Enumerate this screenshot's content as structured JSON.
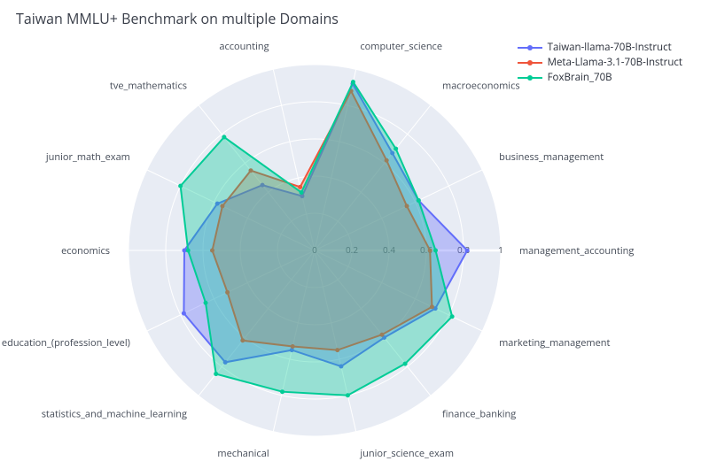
{
  "title": "Taiwan MMLU+ Benchmark on multiple Domains",
  "chart": {
    "type": "radar",
    "background_color": "#ffffff",
    "plot_bgcolor": "#e8ecf4",
    "gridline_color": "#ffffff",
    "axis_line_color": "#ffffff",
    "label_color": "#444b57",
    "label_fontsize": 11,
    "tick_fontsize": 10,
    "radial_axis": {
      "range": [
        0,
        1
      ],
      "ticks": [
        0,
        0.2,
        0.4,
        0.6,
        0.8,
        1
      ],
      "tick_labels": [
        "0",
        "0.2",
        "0.4",
        "0.6",
        "0.8",
        "1"
      ],
      "angle_deg": 0
    },
    "categories": [
      "management_accounting",
      "business_management",
      "macroeconomics",
      "computer_science",
      "accounting",
      "tve_mathematics",
      "junior_math_exam",
      "economics",
      "education_(profession_level)",
      "statistics_and_machine_learning",
      "mechanical",
      "junior_science_exam",
      "finance_banking",
      "marketing_management"
    ],
    "series": [
      {
        "name": "Taiwan-llama-70B-Instruct",
        "color": "#636efa",
        "fill_opacity": 0.35,
        "line_width": 2,
        "marker_size": 5,
        "values": [
          0.82,
          0.62,
          0.67,
          0.92,
          0.3,
          0.45,
          0.58,
          0.7,
          0.78,
          0.77,
          0.55,
          0.64,
          0.6,
          0.72
        ]
      },
      {
        "name": "Meta-Llama-3.1-70B-Instruct",
        "color": "#ef553b",
        "fill_opacity": 0.3,
        "line_width": 2,
        "marker_size": 5,
        "values": [
          0.62,
          0.55,
          0.62,
          0.88,
          0.35,
          0.55,
          0.55,
          0.55,
          0.52,
          0.62,
          0.53,
          0.55,
          0.58,
          0.7
        ]
      },
      {
        "name": "FoxBrain_70B",
        "color": "#00cc96",
        "fill_opacity": 0.35,
        "line_width": 2,
        "marker_size": 5,
        "values": [
          0.65,
          0.62,
          0.7,
          0.93,
          0.32,
          0.78,
          0.8,
          0.68,
          0.65,
          0.85,
          0.78,
          0.8,
          0.78,
          0.82
        ]
      }
    ],
    "legend": {
      "x": "right",
      "y": "top",
      "fontsize": 11.5
    }
  }
}
